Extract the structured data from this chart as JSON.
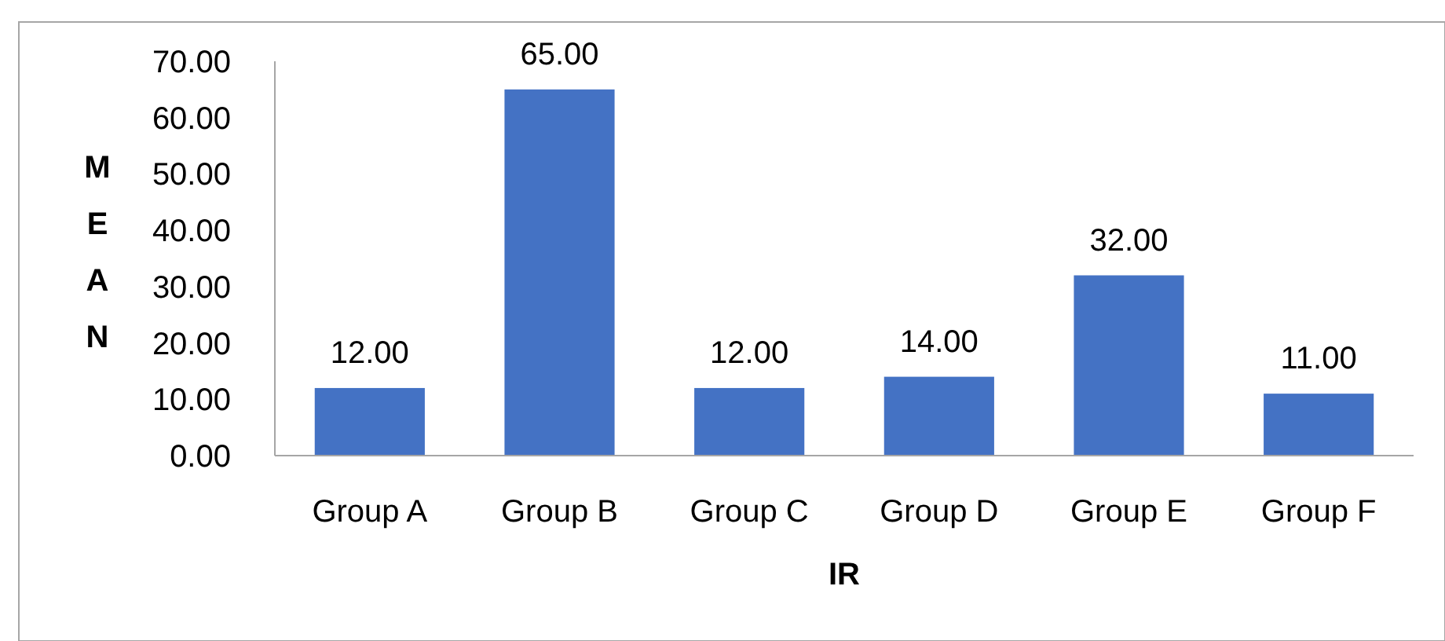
{
  "chart_data": {
    "type": "bar",
    "xlabel": "IR",
    "ylabel": "MEAN",
    "categories": [
      "Group A",
      "Group B",
      "Group C",
      "Group D",
      "Group E",
      "Group F"
    ],
    "values": [
      12,
      65,
      12,
      14,
      32,
      11
    ],
    "color": "#4472c4",
    "ylim": [
      0,
      70
    ],
    "yticks": [
      {
        "value": 0,
        "label": "0.00"
      },
      {
        "value": 10,
        "label": "10.00"
      },
      {
        "value": 20,
        "label": "20.00"
      },
      {
        "value": 30,
        "label": "30.00"
      },
      {
        "value": 40,
        "label": "40.00"
      },
      {
        "value": 50,
        "label": "50.00"
      },
      {
        "value": 60,
        "label": "60.00"
      },
      {
        "value": 70,
        "label": "70.00"
      }
    ],
    "value_labels": [
      "12.00",
      "65.00",
      "12.00",
      "14.00",
      "32.00",
      "11.00"
    ]
  }
}
